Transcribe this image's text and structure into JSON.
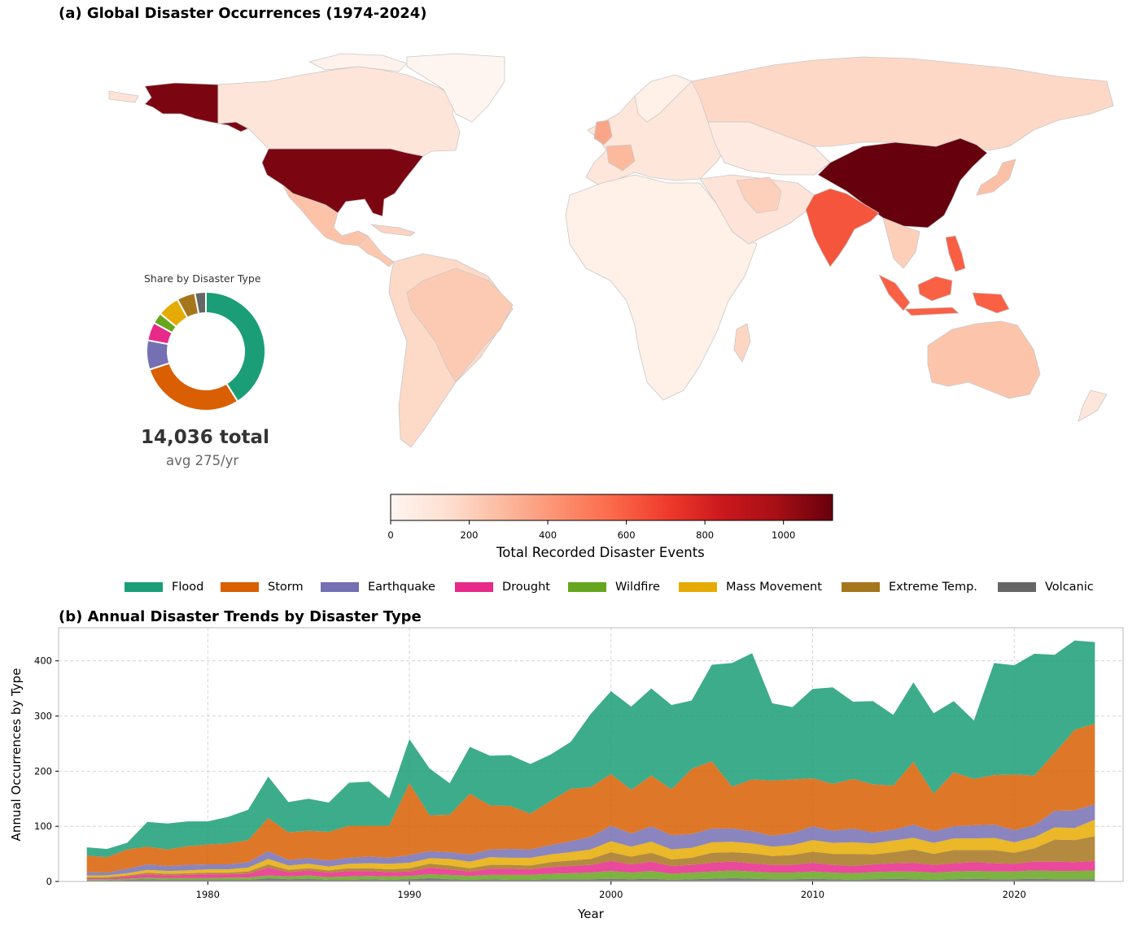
{
  "map_panel": {
    "title": "(a) Global Disaster Occurrences (1974-2024)",
    "colorbar": {
      "label": "Total Recorded Disaster Events",
      "ticks": [
        0,
        200,
        400,
        600,
        800,
        1000
      ],
      "min": 0,
      "max": 1125,
      "colormap": [
        "#fff5f0",
        "#fee0d2",
        "#fcbba1",
        "#fc9272",
        "#fb6a4a",
        "#ef3b2c",
        "#cb181d",
        "#a50f15",
        "#67000d"
      ]
    },
    "regions": [
      {
        "name": "Alaska (USA)",
        "value": 1000,
        "color": "#7b0612"
      },
      {
        "name": "USA",
        "value": 1000,
        "color": "#7b0612"
      },
      {
        "name": "China",
        "value": 1125,
        "color": "#67000d"
      },
      {
        "name": "India",
        "value": 690,
        "color": "#f5553c"
      },
      {
        "name": "Indonesia",
        "value": 640,
        "color": "#f96044"
      },
      {
        "name": "Philippines",
        "value": 650,
        "color": "#f85e42"
      },
      {
        "name": "Brazil",
        "value": 180,
        "color": "#fccab2"
      },
      {
        "name": "Mexico",
        "value": 210,
        "color": "#fcc3a9"
      },
      {
        "name": "Australia",
        "value": 200,
        "color": "#fcc5ab"
      },
      {
        "name": "Russia",
        "value": 120,
        "color": "#fdd8c7"
      },
      {
        "name": "Canada",
        "value": 60,
        "color": "#fee5da"
      },
      {
        "name": "Iran",
        "value": 150,
        "color": "#fdd0bc"
      },
      {
        "name": "Japan",
        "value": 220,
        "color": "#fcc0a6"
      }
    ],
    "donut": {
      "title": "Share by Disaster Type",
      "total_text": "14,036 total",
      "avg_text": "avg 275/yr",
      "slices": [
        {
          "name": "Flood",
          "share": 0.41
        },
        {
          "name": "Storm",
          "share": 0.29
        },
        {
          "name": "Earthquake",
          "share": 0.08
        },
        {
          "name": "Drought",
          "share": 0.05
        },
        {
          "name": "Wildfire",
          "share": 0.03
        },
        {
          "name": "Mass Movement",
          "share": 0.06
        },
        {
          "name": "Extreme Temp.",
          "share": 0.05
        },
        {
          "name": "Volcanic",
          "share": 0.03
        }
      ]
    }
  },
  "legend": [
    {
      "name": "Flood",
      "color": "#1b9e77"
    },
    {
      "name": "Storm",
      "color": "#d95f02"
    },
    {
      "name": "Earthquake",
      "color": "#7570b3"
    },
    {
      "name": "Drought",
      "color": "#e7298a"
    },
    {
      "name": "Wildfire",
      "color": "#66a61e"
    },
    {
      "name": "Mass Movement",
      "color": "#e6ab02"
    },
    {
      "name": "Extreme Temp.",
      "color": "#a6761d"
    },
    {
      "name": "Volcanic",
      "color": "#666666"
    }
  ],
  "trend_panel": {
    "title": "(b) Annual Disaster Trends by Disaster Type"
  },
  "chart_data": {
    "type": "area",
    "xlabel": "Year",
    "ylabel": "Annual Occurrences by Type",
    "xlim": [
      1972.6,
      2025.4
    ],
    "ylim": [
      0,
      460
    ],
    "xticks": [
      1980,
      1990,
      2000,
      2010,
      2020
    ],
    "yticks": [
      0,
      100,
      200,
      300,
      400
    ],
    "grid": true,
    "x": [
      1974,
      1975,
      1976,
      1977,
      1978,
      1979,
      1980,
      1981,
      1982,
      1983,
      1984,
      1985,
      1986,
      1987,
      1988,
      1989,
      1990,
      1991,
      1992,
      1993,
      1994,
      1995,
      1996,
      1997,
      1998,
      1999,
      2000,
      2001,
      2002,
      2003,
      2004,
      2005,
      2006,
      2007,
      2008,
      2009,
      2010,
      2011,
      2012,
      2013,
      2014,
      2015,
      2016,
      2017,
      2018,
      2019,
      2020,
      2021,
      2022,
      2023,
      2024
    ],
    "series": [
      {
        "name": "Volcanic",
        "values": [
          2,
          2,
          3,
          4,
          3,
          3,
          3,
          3,
          3,
          6,
          4,
          5,
          3,
          3,
          4,
          3,
          4,
          6,
          4,
          3,
          4,
          3,
          3,
          4,
          4,
          4,
          5,
          4,
          5,
          3,
          4,
          5,
          6,
          5,
          4,
          4,
          5,
          4,
          3,
          4,
          5,
          4,
          3,
          4,
          5,
          4,
          4,
          5,
          4,
          4,
          4
        ]
      },
      {
        "name": "Wildfire",
        "values": [
          2,
          2,
          2,
          3,
          3,
          3,
          3,
          4,
          4,
          5,
          5,
          6,
          5,
          6,
          6,
          6,
          6,
          7,
          8,
          7,
          8,
          9,
          9,
          10,
          11,
          12,
          14,
          12,
          14,
          11,
          12,
          13,
          14,
          13,
          12,
          12,
          13,
          12,
          12,
          13,
          13,
          14,
          13,
          14,
          14,
          14,
          14,
          15,
          15,
          15,
          16
        ]
      },
      {
        "name": "Drought",
        "values": [
          2,
          2,
          4,
          6,
          5,
          6,
          7,
          6,
          7,
          14,
          8,
          9,
          8,
          10,
          9,
          8,
          8,
          12,
          10,
          8,
          11,
          11,
          10,
          12,
          13,
          14,
          18,
          15,
          17,
          14,
          14,
          16,
          16,
          15,
          14,
          14,
          16,
          14,
          13,
          14,
          15,
          16,
          14,
          15,
          16,
          15,
          14,
          16,
          17,
          16,
          17
        ]
      },
      {
        "name": "Extreme Temp.",
        "values": [
          2,
          2,
          2,
          3,
          3,
          3,
          3,
          3,
          4,
          6,
          4,
          4,
          4,
          5,
          5,
          5,
          6,
          7,
          7,
          6,
          7,
          7,
          7,
          9,
          10,
          11,
          16,
          14,
          16,
          12,
          13,
          18,
          17,
          18,
          16,
          18,
          20,
          20,
          22,
          18,
          20,
          24,
          20,
          24,
          22,
          24,
          20,
          24,
          40,
          40,
          45
        ]
      },
      {
        "name": "Mass Movement",
        "values": [
          3,
          3,
          4,
          5,
          5,
          5,
          6,
          6,
          7,
          10,
          8,
          8,
          7,
          8,
          9,
          10,
          10,
          10,
          12,
          12,
          14,
          13,
          14,
          14,
          15,
          17,
          20,
          18,
          20,
          18,
          18,
          19,
          19,
          18,
          17,
          18,
          21,
          20,
          21,
          20,
          21,
          21,
          20,
          21,
          21,
          22,
          19,
          20,
          22,
          22,
          30
        ]
      },
      {
        "name": "Earthquake",
        "values": [
          6,
          5,
          8,
          10,
          9,
          10,
          9,
          9,
          10,
          14,
          10,
          10,
          11,
          11,
          12,
          11,
          14,
          13,
          12,
          13,
          14,
          16,
          15,
          17,
          20,
          23,
          28,
          24,
          28,
          26,
          25,
          25,
          24,
          22,
          20,
          22,
          25,
          22,
          25,
          20,
          20,
          24,
          21,
          22,
          24,
          24,
          22,
          22,
          30,
          32,
          28
        ]
      },
      {
        "name": "Storm",
        "values": [
          30,
          28,
          35,
          32,
          30,
          34,
          36,
          38,
          40,
          60,
          50,
          50,
          52,
          58,
          56,
          58,
          130,
          65,
          68,
          110,
          80,
          78,
          65,
          80,
          95,
          90,
          94,
          79,
          92,
          83,
          118,
          122,
          76,
          94,
          100,
          97,
          87,
          85,
          90,
          87,
          80,
          114,
          68,
          98,
          84,
          90,
          101,
          90,
          105,
          146,
          146
        ]
      },
      {
        "name": "Flood",
        "values": [
          15,
          15,
          12,
          45,
          47,
          45,
          42,
          48,
          55,
          75,
          55,
          58,
          53,
          78,
          80,
          50,
          80,
          85,
          57,
          85,
          90,
          92,
          90,
          84,
          85,
          133,
          150,
          151,
          158,
          153,
          124,
          175,
          224,
          229,
          140,
          131,
          162,
          175,
          140,
          151,
          128,
          144,
          146,
          129,
          106,
          203,
          198,
          221,
          178,
          162,
          148
        ]
      }
    ]
  }
}
